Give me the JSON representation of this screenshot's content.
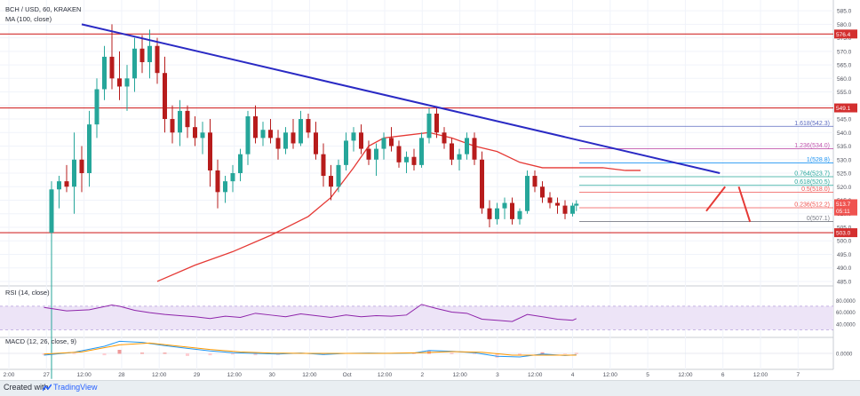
{
  "chart_data": {
    "type": "candlestick",
    "symbol_line": "BCH / USD, 60, KRAKEN",
    "ma_line": "MA (100, close)",
    "rsi_line": "RSI (14, close)",
    "macd_line": "MACD (12, 26, close, 9)",
    "price_axis_labels": [
      "585.0",
      "580.0",
      "575.0",
      "570.0",
      "565.0",
      "560.0",
      "555.0",
      "550.0",
      "545.0",
      "540.0",
      "535.0",
      "530.0",
      "525.0",
      "520.0",
      "515.0",
      "510.0",
      "505.0",
      "500.0",
      "495.0",
      "490.0",
      "485.0"
    ],
    "rsi_axis_labels": [
      "80.0000",
      "60.0000",
      "40.0000"
    ],
    "macd_axis_labels": [
      "0.0000"
    ],
    "time_axis_labels": [
      "2:00",
      "27",
      "12:00",
      "28",
      "12:00",
      "29",
      "12:00",
      "30",
      "12:00",
      "Oct",
      "12:00",
      "2",
      "12:00",
      "3",
      "12:00",
      "4",
      "12:00",
      "5",
      "12:00",
      "6",
      "12:00",
      "7"
    ],
    "price_range": [
      484,
      587
    ],
    "rsi_range": [
      20,
      100
    ],
    "horizontal_levels": [
      {
        "value": 576.4,
        "label": "576.4"
      },
      {
        "value": 549.1,
        "label": "549.1"
      },
      {
        "value": 503.0,
        "label": "503.0"
      }
    ],
    "price_tags": [
      {
        "value": 513.7,
        "label": "513.7",
        "color": "#ef5350"
      },
      {
        "value": 511.0,
        "label": "05:11",
        "color": "#ef5350"
      }
    ],
    "fibonacci": [
      {
        "level": "1.618",
        "value": 542.3,
        "label": "1.618(542.3)",
        "color": "#5c6bc0"
      },
      {
        "level": "1.236",
        "value": 534.0,
        "label": "1.236(534.0)",
        "color": "#c257ad"
      },
      {
        "level": "1",
        "value": 528.8,
        "label": "1(528.8)",
        "color": "#2196f3"
      },
      {
        "level": "0.764",
        "value": 523.7,
        "label": "0.764(523.7)",
        "color": "#26a69a"
      },
      {
        "level": "0.618",
        "value": 520.5,
        "label": "0.618(520.5)",
        "color": "#26a69a"
      },
      {
        "level": "0.5",
        "value": 518.0,
        "label": "0.5(518.0)",
        "color": "#ef5350"
      },
      {
        "level": "0.236",
        "value": 512.2,
        "label": "0.236(512.2)",
        "color": "#ef5350"
      },
      {
        "level": "0",
        "value": 507.1,
        "label": "0(507.1)",
        "color": "#787b86"
      }
    ],
    "trendline": {
      "from": {
        "t": 0.5,
        "price": 580.0
      },
      "to": {
        "t": 8.95,
        "price": 525.0
      },
      "color": "#2a2ac4"
    },
    "projection_arrows": [
      {
        "from": {
          "t": 8.77,
          "price": 511.0
        },
        "to": {
          "t": 9.02,
          "price": 520.0
        },
        "color": "#e53935"
      },
      {
        "from": {
          "t": 9.2,
          "price": 520.0
        },
        "to": {
          "t": 9.35,
          "price": 507.0
        },
        "color": "#e53935"
      }
    ],
    "ma_100": [
      [
        1.5,
        485
      ],
      [
        2.0,
        491
      ],
      [
        2.5,
        496
      ],
      [
        3.0,
        502
      ],
      [
        3.5,
        509
      ],
      [
        3.8,
        516
      ],
      [
        4.1,
        527
      ],
      [
        4.3,
        535
      ],
      [
        4.5,
        538
      ],
      [
        4.8,
        539
      ],
      [
        5.1,
        540
      ],
      [
        5.4,
        538
      ],
      [
        5.7,
        535
      ],
      [
        6.0,
        533
      ],
      [
        6.3,
        529
      ],
      [
        6.6,
        527
      ],
      [
        7.0,
        527
      ],
      [
        7.4,
        527
      ],
      [
        7.7,
        526
      ],
      [
        7.9,
        526
      ]
    ],
    "ohlc": [
      [
        0.1,
        503,
        522,
        449,
        519
      ],
      [
        0.2,
        519,
        524,
        512,
        522
      ],
      [
        0.3,
        522,
        528,
        518,
        520
      ],
      [
        0.4,
        520,
        540,
        510,
        530
      ],
      [
        0.5,
        530,
        535,
        518,
        525
      ],
      [
        0.6,
        525,
        548,
        520,
        543
      ],
      [
        0.7,
        543,
        560,
        538,
        556
      ],
      [
        0.8,
        556,
        572,
        552,
        568
      ],
      [
        0.9,
        568,
        580,
        556,
        560
      ],
      [
        1.0,
        560,
        570,
        552,
        557
      ],
      [
        1.1,
        557,
        565,
        548,
        560
      ],
      [
        1.2,
        560,
        575,
        555,
        571
      ],
      [
        1.3,
        571,
        576,
        562,
        566
      ],
      [
        1.4,
        566,
        578,
        560,
        572
      ],
      [
        1.5,
        572,
        575,
        558,
        562
      ],
      [
        1.6,
        562,
        568,
        540,
        545
      ],
      [
        1.7,
        545,
        550,
        536,
        540
      ],
      [
        1.8,
        540,
        552,
        535,
        548
      ],
      [
        1.9,
        548,
        550,
        538,
        542
      ],
      [
        2.0,
        542,
        546,
        535,
        538
      ],
      [
        2.1,
        538,
        544,
        532,
        540
      ],
      [
        2.2,
        540,
        545,
        520,
        526
      ],
      [
        2.3,
        526,
        530,
        512,
        518
      ],
      [
        2.4,
        518,
        524,
        514,
        522
      ],
      [
        2.5,
        522,
        528,
        518,
        525
      ],
      [
        2.6,
        525,
        534,
        522,
        532
      ],
      [
        2.7,
        532,
        548,
        528,
        546
      ],
      [
        2.8,
        546,
        550,
        536,
        538
      ],
      [
        2.9,
        538,
        544,
        535,
        541
      ],
      [
        3.0,
        541,
        545,
        536,
        538
      ],
      [
        3.1,
        538,
        541,
        530,
        534
      ],
      [
        3.2,
        534,
        542,
        532,
        540
      ],
      [
        3.3,
        540,
        545,
        534,
        536
      ],
      [
        3.4,
        536,
        548,
        535,
        545
      ],
      [
        3.5,
        545,
        547,
        538,
        540
      ],
      [
        3.6,
        540,
        544,
        530,
        532
      ],
      [
        3.7,
        532,
        536,
        520,
        524
      ],
      [
        3.8,
        524,
        528,
        515,
        520
      ],
      [
        3.9,
        520,
        530,
        518,
        528
      ],
      [
        4.0,
        528,
        540,
        526,
        537
      ],
      [
        4.1,
        537,
        542,
        533,
        540
      ],
      [
        4.2,
        540,
        543,
        532,
        534
      ],
      [
        4.3,
        534,
        537,
        528,
        530
      ],
      [
        4.4,
        530,
        536,
        524,
        534
      ],
      [
        4.5,
        534,
        540,
        530,
        538
      ],
      [
        4.6,
        538,
        542,
        533,
        535
      ],
      [
        4.7,
        535,
        537,
        527,
        529
      ],
      [
        4.8,
        529,
        533,
        525,
        531
      ],
      [
        4.9,
        531,
        534,
        526,
        528
      ],
      [
        5.0,
        528,
        540,
        527,
        538
      ],
      [
        5.1,
        538,
        549,
        536,
        547
      ],
      [
        5.2,
        547,
        549,
        538,
        540
      ],
      [
        5.3,
        540,
        542,
        534,
        536
      ],
      [
        5.4,
        536,
        538,
        528,
        530
      ],
      [
        5.5,
        530,
        534,
        526,
        532
      ],
      [
        5.6,
        532,
        540,
        530,
        538
      ],
      [
        5.7,
        538,
        540,
        528,
        530
      ],
      [
        5.8,
        530,
        533,
        510,
        512
      ],
      [
        5.9,
        512,
        515,
        505,
        508
      ],
      [
        6.0,
        508,
        514,
        506,
        512
      ],
      [
        6.1,
        512,
        516,
        508,
        514
      ],
      [
        6.2,
        514,
        516,
        506,
        508
      ],
      [
        6.3,
        508,
        512,
        506,
        511
      ],
      [
        6.4,
        511,
        526,
        510,
        524
      ],
      [
        6.5,
        524,
        526,
        518,
        520
      ],
      [
        6.6,
        520,
        522,
        514,
        516
      ],
      [
        6.7,
        516,
        518,
        512,
        514
      ],
      [
        6.8,
        514,
        516,
        510,
        513
      ],
      [
        6.9,
        513,
        515,
        508,
        510
      ],
      [
        7.0,
        510,
        514,
        509,
        513
      ],
      [
        7.05,
        513,
        515,
        511,
        513.7
      ]
    ],
    "rsi": [
      [
        0.0,
        68
      ],
      [
        0.3,
        62
      ],
      [
        0.6,
        64
      ],
      [
        0.9,
        72
      ],
      [
        1.0,
        70
      ],
      [
        1.2,
        63
      ],
      [
        1.4,
        59
      ],
      [
        1.6,
        56
      ],
      [
        1.8,
        54
      ],
      [
        2.0,
        52
      ],
      [
        2.2,
        49
      ],
      [
        2.4,
        53
      ],
      [
        2.6,
        51
      ],
      [
        2.8,
        58
      ],
      [
        3.0,
        55
      ],
      [
        3.2,
        52
      ],
      [
        3.4,
        57
      ],
      [
        3.6,
        54
      ],
      [
        3.8,
        51
      ],
      [
        4.0,
        55
      ],
      [
        4.2,
        52
      ],
      [
        4.4,
        54
      ],
      [
        4.6,
        53
      ],
      [
        4.8,
        55
      ],
      [
        5.0,
        73
      ],
      [
        5.2,
        66
      ],
      [
        5.4,
        60
      ],
      [
        5.6,
        58
      ],
      [
        5.8,
        48
      ],
      [
        6.0,
        46
      ],
      [
        6.2,
        44
      ],
      [
        6.4,
        56
      ],
      [
        6.6,
        52
      ],
      [
        6.8,
        48
      ],
      [
        7.0,
        46
      ],
      [
        7.05,
        49
      ]
    ],
    "macd": [
      [
        0.0,
        -0.5
      ],
      [
        0.4,
        0.3
      ],
      [
        0.8,
        2.0
      ],
      [
        1.0,
        3.4
      ],
      [
        1.3,
        3.1
      ],
      [
        1.6,
        2.2
      ],
      [
        1.9,
        1.4
      ],
      [
        2.2,
        0.7
      ],
      [
        2.5,
        0.2
      ],
      [
        2.8,
        0.0
      ],
      [
        3.1,
        -0.2
      ],
      [
        3.4,
        0.1
      ],
      [
        3.7,
        -0.3
      ],
      [
        4.0,
        0.0
      ],
      [
        4.3,
        0.1
      ],
      [
        4.6,
        0.0
      ],
      [
        4.9,
        0.1
      ],
      [
        5.1,
        0.8
      ],
      [
        5.4,
        0.6
      ],
      [
        5.7,
        0.2
      ],
      [
        6.0,
        -0.8
      ],
      [
        6.3,
        -1.0
      ],
      [
        6.6,
        -0.2
      ],
      [
        6.9,
        -0.6
      ],
      [
        7.05,
        -0.4
      ]
    ],
    "macd_signal": [
      [
        0.0,
        -0.2
      ],
      [
        0.5,
        0.4
      ],
      [
        1.0,
        2.4
      ],
      [
        1.4,
        2.9
      ],
      [
        1.8,
        2.0
      ],
      [
        2.2,
        1.1
      ],
      [
        2.6,
        0.4
      ],
      [
        3.0,
        0.1
      ],
      [
        3.5,
        0.0
      ],
      [
        4.0,
        0.0
      ],
      [
        4.5,
        0.0
      ],
      [
        5.0,
        0.2
      ],
      [
        5.4,
        0.5
      ],
      [
        5.8,
        0.3
      ],
      [
        6.2,
        -0.5
      ],
      [
        6.6,
        -0.5
      ],
      [
        7.05,
        -0.5
      ]
    ]
  },
  "footer": {
    "created_with": "Created with",
    "brand": "TradingView"
  }
}
